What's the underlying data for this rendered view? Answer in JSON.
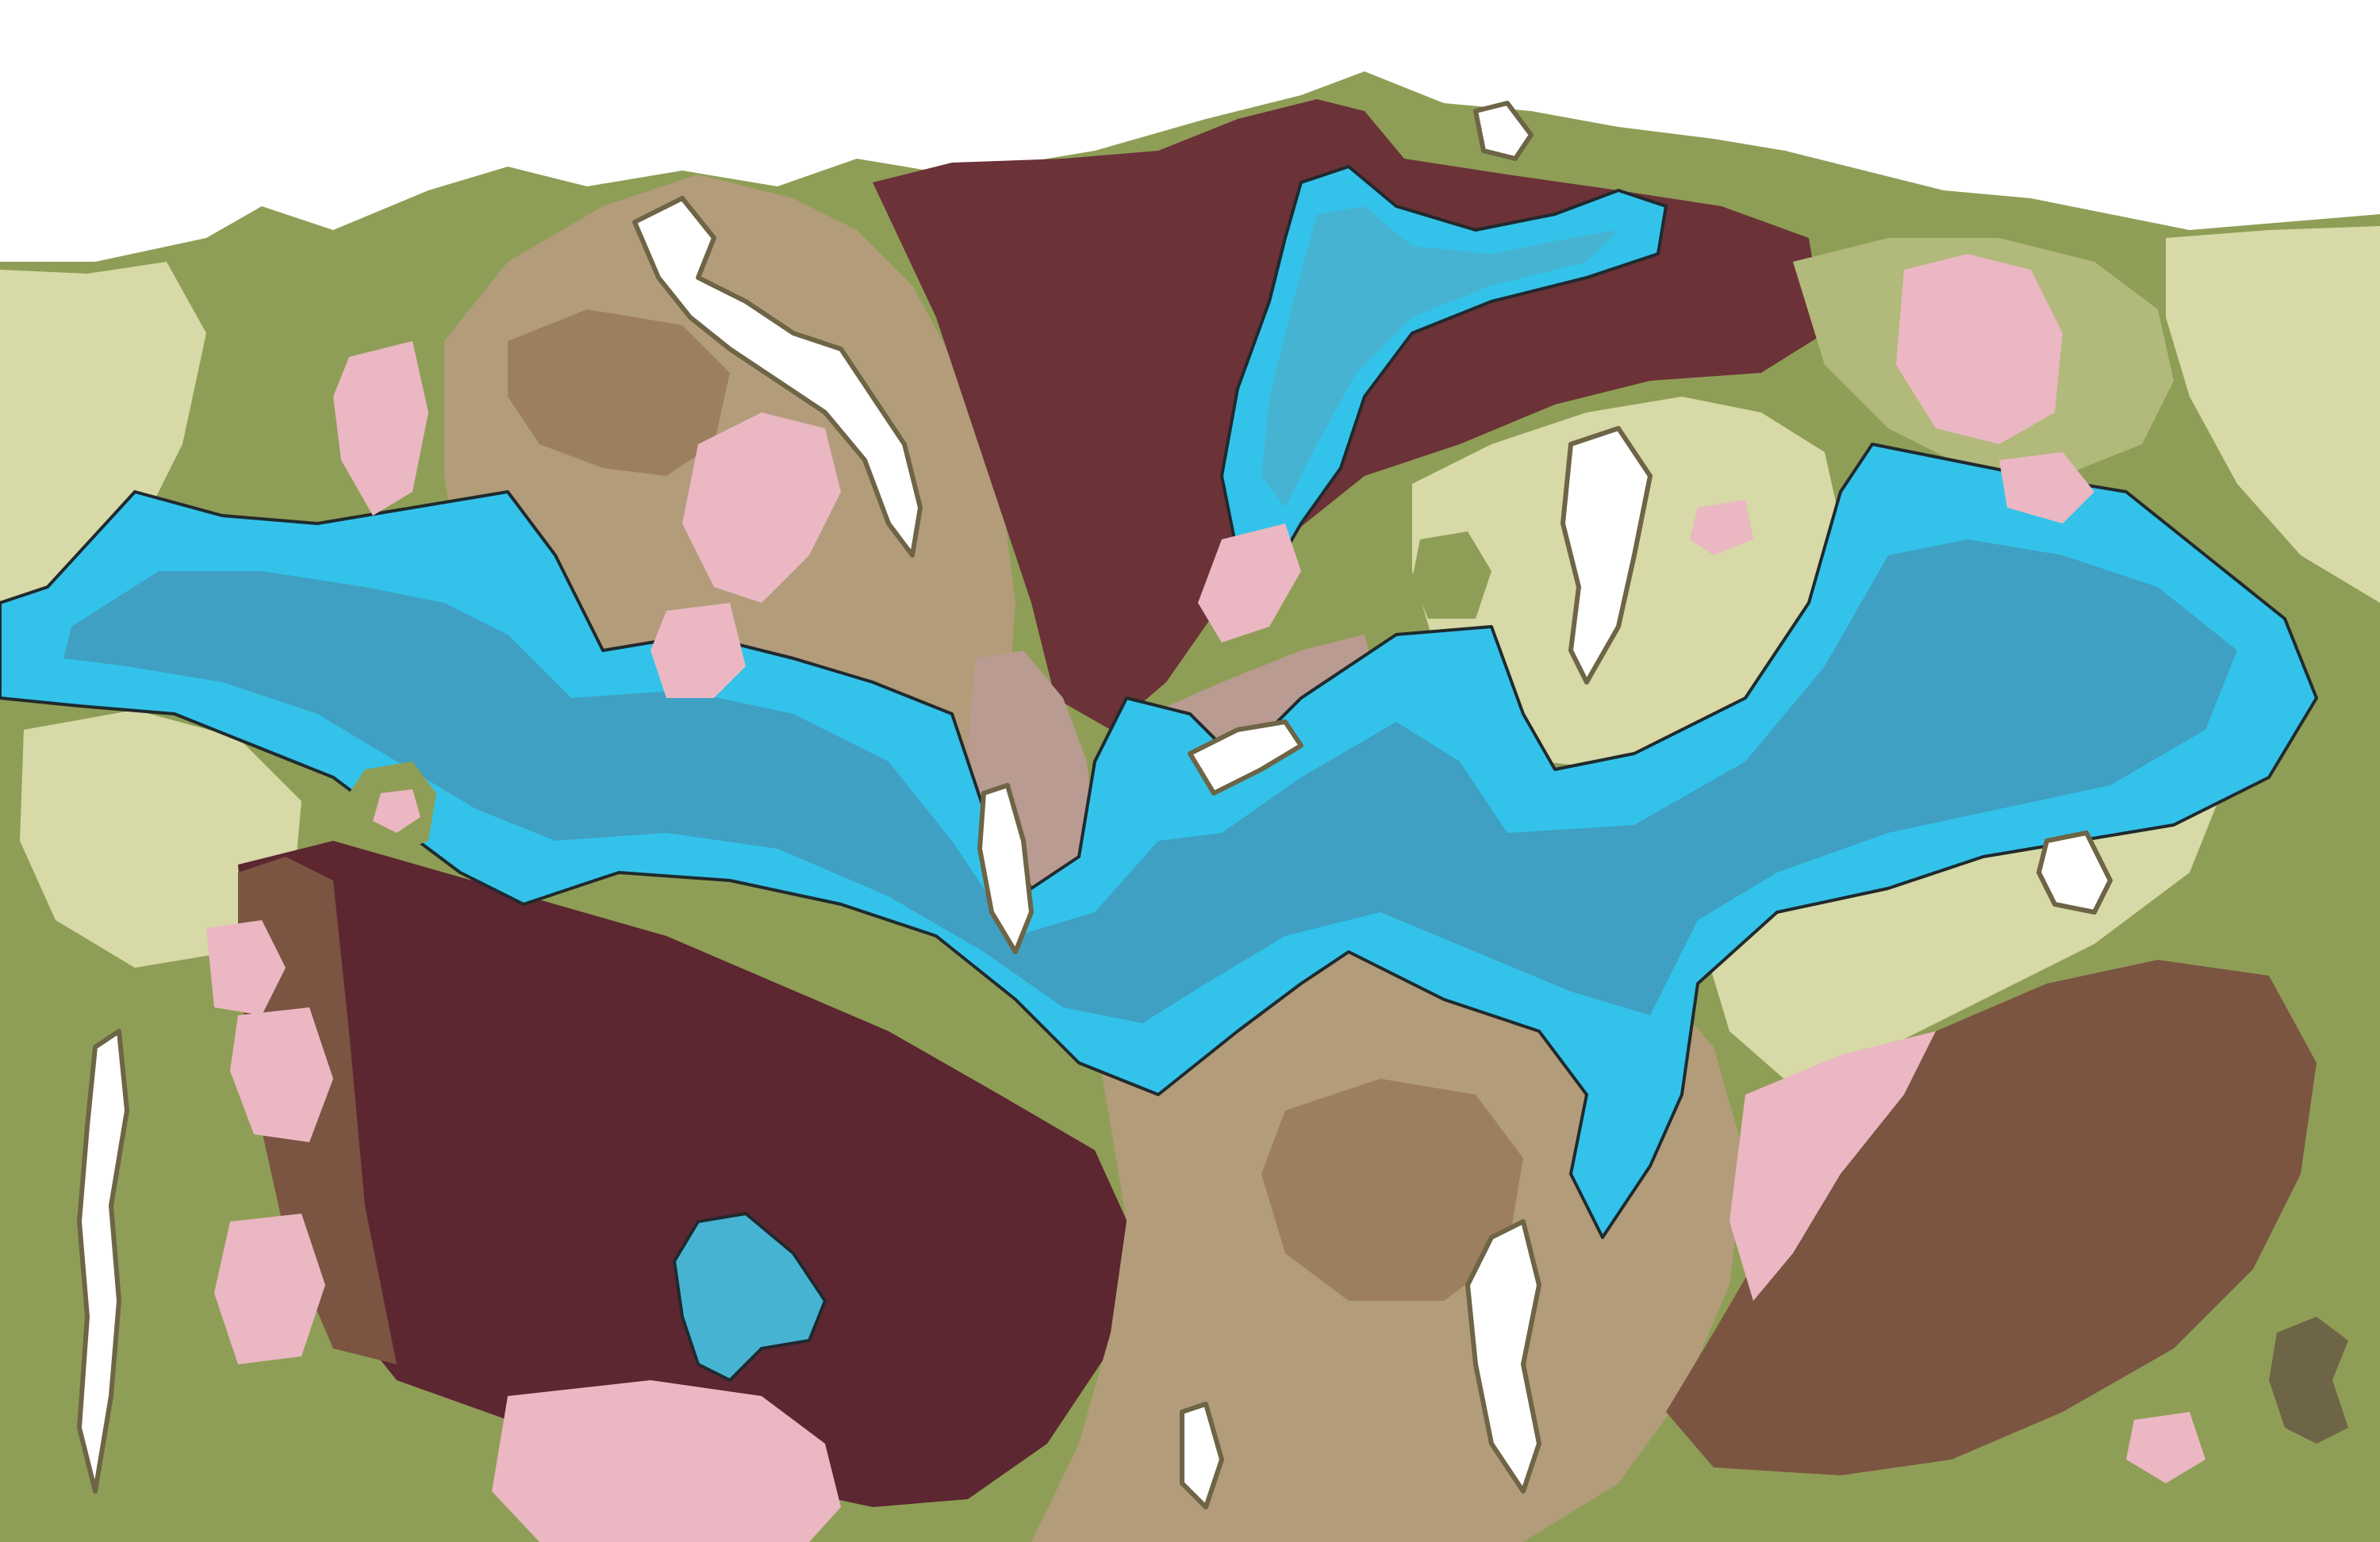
{
  "map": {
    "kind": "fantasy world terrain map (no labels)",
    "legend_colors": {
      "sky": "#ffffff",
      "plains_light": "#d7d9a6",
      "grassland": "#8f9e56",
      "grassland_light": "#b1b97b",
      "hills_tan": "#b39c7a",
      "hills_brown": "#9c7f5f",
      "highland_dark": "#6b3238",
      "highland_darker": "#5c2730",
      "mountain_brown": "#7b5442",
      "rocky_pink": "#b99b92",
      "blossom_pink": "#eab7c2",
      "snow": "#ffffff",
      "snow_edge": "#6e6446",
      "water_shallow": "#33c3ea",
      "water_mid": "#47b3d3",
      "water_deep": "#3fa0c4",
      "coast_outline": "#1f2a2e"
    }
  }
}
